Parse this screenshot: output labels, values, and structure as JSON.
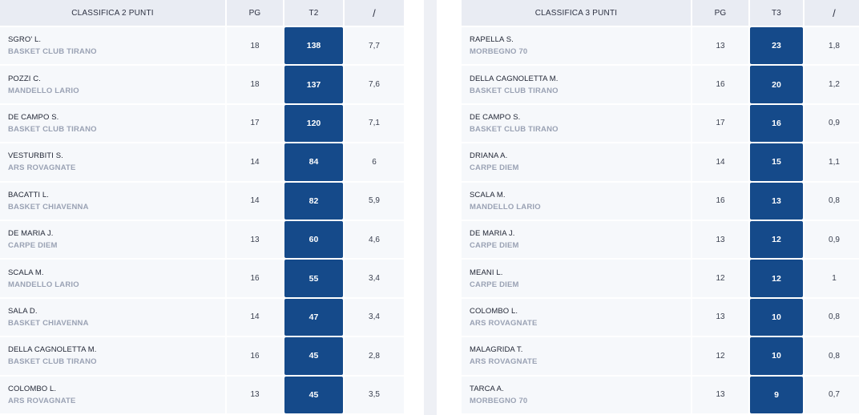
{
  "colors": {
    "header_bg": "#e9ecf3",
    "row_bg": "#f6f8fb",
    "highlight": "#154a8a",
    "team_text": "#9aa2b4"
  },
  "left": {
    "title": "CLASSIFICA 2 PUNTI",
    "col_pg": "PG",
    "col_stat": "T2",
    "col_avg": "/",
    "rows": [
      {
        "name": "SGRO' L.",
        "team": "BASKET CLUB TIRANO",
        "pg": "18",
        "stat": "138",
        "avg": "7,7"
      },
      {
        "name": "POZZI C.",
        "team": "MANDELLO LARIO",
        "pg": "18",
        "stat": "137",
        "avg": "7,6"
      },
      {
        "name": "DE CAMPO S.",
        "team": "BASKET CLUB TIRANO",
        "pg": "17",
        "stat": "120",
        "avg": "7,1"
      },
      {
        "name": "VESTURBITI S.",
        "team": "ARS ROVAGNATE",
        "pg": "14",
        "stat": "84",
        "avg": "6"
      },
      {
        "name": "BACATTI L.",
        "team": "BASKET CHIAVENNA",
        "pg": "14",
        "stat": "82",
        "avg": "5,9"
      },
      {
        "name": "DE MARIA J.",
        "team": "CARPE DIEM",
        "pg": "13",
        "stat": "60",
        "avg": "4,6"
      },
      {
        "name": "SCALA M.",
        "team": "MANDELLO LARIO",
        "pg": "16",
        "stat": "55",
        "avg": "3,4"
      },
      {
        "name": "SALA D.",
        "team": "BASKET CHIAVENNA",
        "pg": "14",
        "stat": "47",
        "avg": "3,4"
      },
      {
        "name": "DELLA CAGNOLETTA M.",
        "team": "BASKET CLUB TIRANO",
        "pg": "16",
        "stat": "45",
        "avg": "2,8"
      },
      {
        "name": "COLOMBO L.",
        "team": "ARS ROVAGNATE",
        "pg": "13",
        "stat": "45",
        "avg": "3,5"
      }
    ]
  },
  "right": {
    "title": "CLASSIFICA 3 PUNTI",
    "col_pg": "PG",
    "col_stat": "T3",
    "col_avg": "/",
    "rows": [
      {
        "name": "RAPELLA S.",
        "team": "MORBEGNO 70",
        "pg": "13",
        "stat": "23",
        "avg": "1,8"
      },
      {
        "name": "DELLA CAGNOLETTA M.",
        "team": "BASKET CLUB TIRANO",
        "pg": "16",
        "stat": "20",
        "avg": "1,2"
      },
      {
        "name": "DE CAMPO S.",
        "team": "BASKET CLUB TIRANO",
        "pg": "17",
        "stat": "16",
        "avg": "0,9"
      },
      {
        "name": "DRIANA A.",
        "team": "CARPE DIEM",
        "pg": "14",
        "stat": "15",
        "avg": "1,1"
      },
      {
        "name": "SCALA M.",
        "team": "MANDELLO LARIO",
        "pg": "16",
        "stat": "13",
        "avg": "0,8"
      },
      {
        "name": "DE MARIA J.",
        "team": "CARPE DIEM",
        "pg": "13",
        "stat": "12",
        "avg": "0,9"
      },
      {
        "name": "MEANI L.",
        "team": "CARPE DIEM",
        "pg": "12",
        "stat": "12",
        "avg": "1"
      },
      {
        "name": "COLOMBO L.",
        "team": "ARS ROVAGNATE",
        "pg": "13",
        "stat": "10",
        "avg": "0,8"
      },
      {
        "name": "MALAGRIDA T.",
        "team": "ARS ROVAGNATE",
        "pg": "12",
        "stat": "10",
        "avg": "0,8"
      },
      {
        "name": "TARCA A.",
        "team": "MORBEGNO 70",
        "pg": "13",
        "stat": "9",
        "avg": "0,7"
      }
    ]
  }
}
